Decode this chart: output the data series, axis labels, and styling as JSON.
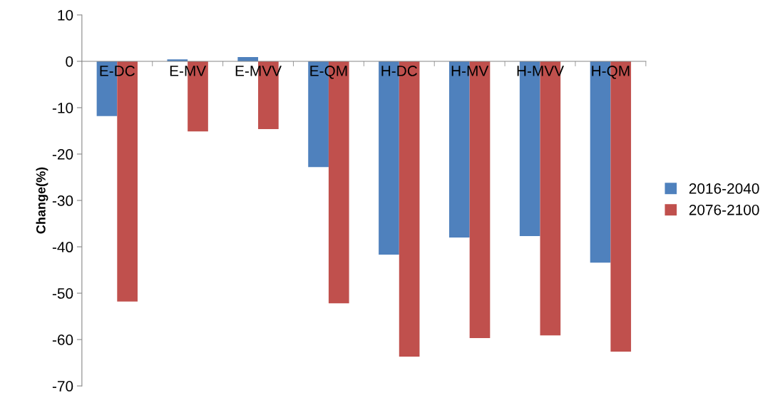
{
  "chart_data": {
    "type": "bar",
    "ylabel": "Change(%)",
    "categories": [
      "E-DC",
      "E-MV",
      "E-MVV",
      "E-QM",
      "H-DC",
      "H-MV",
      "H-MVV",
      "H-QM"
    ],
    "series": [
      {
        "name": "2016-2040",
        "color": "#4f81bd",
        "values": [
          -11.8,
          0.4,
          0.9,
          -22.8,
          -41.7,
          -38.0,
          -37.7,
          -43.4
        ]
      },
      {
        "name": "2076-2100",
        "color": "#c0504d",
        "values": [
          -51.8,
          -15.1,
          -14.6,
          -52.2,
          -63.7,
          -59.7,
          -59.1,
          -62.6
        ]
      }
    ],
    "ylim": [
      -70,
      10
    ],
    "yticks": [
      -70,
      -60,
      -50,
      -40,
      -30,
      -20,
      -10,
      0,
      10
    ],
    "grid": false,
    "legend": "right"
  }
}
